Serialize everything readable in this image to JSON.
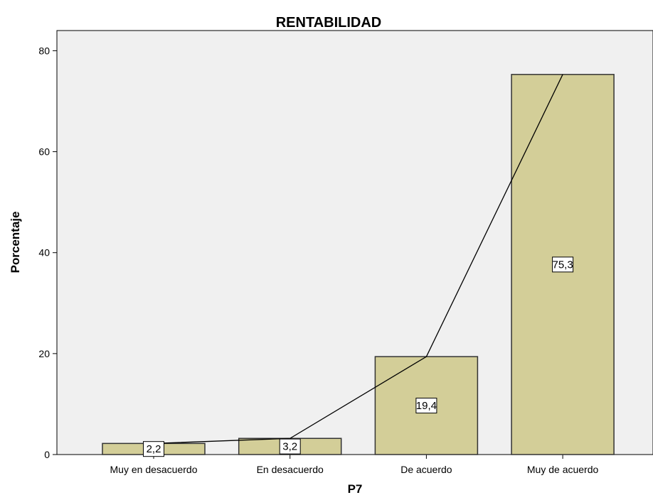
{
  "chart_data": {
    "type": "bar",
    "title": "RENTABILIDAD",
    "xlabel": "P7",
    "ylabel": "Porcentaje",
    "categories": [
      "Muy en desacuerdo",
      "En desacuerdo",
      "De acuerdo",
      "Muy de acuerdo"
    ],
    "values": [
      2.2,
      3.2,
      19.4,
      75.3
    ],
    "value_labels": [
      "2,2",
      "3,2",
      "19,4",
      "75,3"
    ],
    "ylim": [
      0,
      84
    ],
    "yticks": [
      0,
      20,
      40,
      60,
      80
    ],
    "ytick_labels": [
      "0",
      "20",
      "40",
      "60",
      "80"
    ],
    "overlay_line": true,
    "grid": false,
    "colors": {
      "plot_background": "#f0f0f0",
      "bar_fill": "#d3ce98",
      "bar_stroke": "#333333",
      "line": "#000000"
    }
  }
}
